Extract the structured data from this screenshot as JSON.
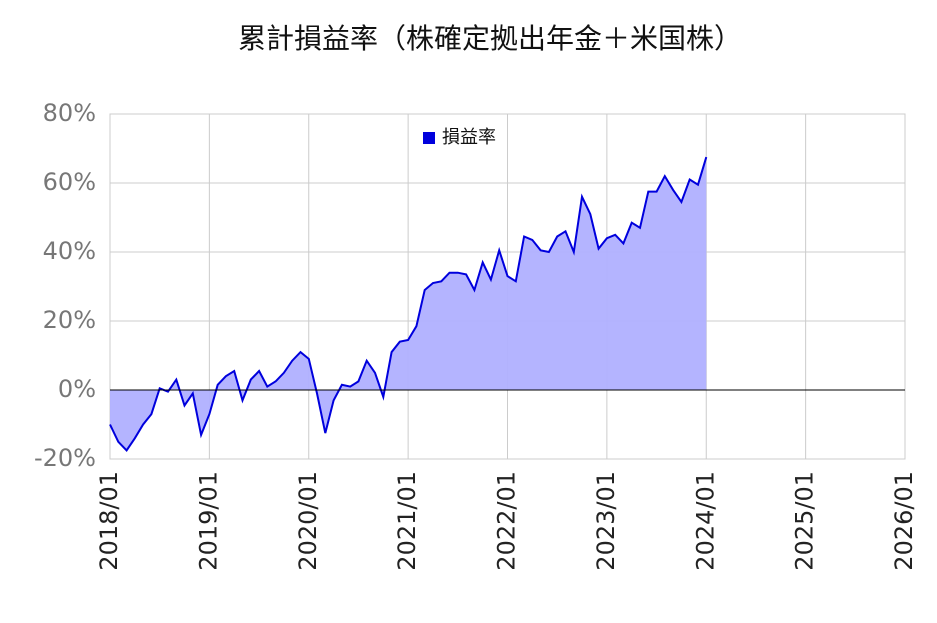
{
  "chart_data": {
    "type": "area",
    "title": "累計損益率（株確定拠出年金＋米国株）",
    "x": [
      "2018/01",
      "2018/02",
      "2018/03",
      "2018/04",
      "2018/05",
      "2018/06",
      "2018/07",
      "2018/08",
      "2018/09",
      "2018/10",
      "2018/11",
      "2018/12",
      "2019/01",
      "2019/02",
      "2019/03",
      "2019/04",
      "2019/05",
      "2019/06",
      "2019/07",
      "2019/08",
      "2019/09",
      "2019/10",
      "2019/11",
      "2019/12",
      "2020/01",
      "2020/02",
      "2020/03",
      "2020/04",
      "2020/05",
      "2020/06",
      "2020/07",
      "2020/08",
      "2020/09",
      "2020/10",
      "2020/11",
      "2020/12",
      "2021/01",
      "2021/02",
      "2021/03",
      "2021/04",
      "2021/05",
      "2021/06",
      "2021/07",
      "2021/08",
      "2021/09",
      "2021/10",
      "2021/11",
      "2021/12",
      "2022/01",
      "2022/02",
      "2022/03",
      "2022/04",
      "2022/05",
      "2022/06",
      "2022/07",
      "2022/08",
      "2022/09",
      "2022/10",
      "2022/11",
      "2022/12",
      "2023/01",
      "2023/02",
      "2023/03",
      "2023/04",
      "2023/05",
      "2023/06",
      "2023/07",
      "2023/08",
      "2023/09",
      "2023/10",
      "2023/11",
      "2023/12",
      "2024/01"
    ],
    "series": [
      {
        "name": "損益率",
        "color": "#0000dd",
        "fill": "#b0b0ff",
        "values": [
          -10,
          -15,
          -17.5,
          -14,
          -10,
          -7,
          0.5,
          -0.5,
          3,
          -4.5,
          -1,
          -13,
          -7,
          1.5,
          4,
          5.5,
          -3,
          3,
          5.5,
          1,
          2.5,
          5,
          8.5,
          11,
          9,
          -1,
          -12.5,
          -3,
          1.5,
          1,
          2.5,
          8.5,
          5,
          -2,
          11,
          14,
          14.5,
          18.5,
          29,
          31,
          31.5,
          34,
          34,
          33.5,
          29,
          37,
          32,
          40.5,
          33,
          31.5,
          44.5,
          43.5,
          40.5,
          40,
          44.5,
          46,
          40,
          56,
          51,
          41,
          44,
          45,
          42.5,
          48.5,
          47,
          57.5,
          57.5,
          62,
          58,
          54.5,
          61,
          59.5,
          67.5
        ]
      }
    ],
    "xlim": [
      "2018/01",
      "2026/01"
    ],
    "xticks": [
      "2018/01",
      "2019/01",
      "2020/01",
      "2021/01",
      "2022/01",
      "2023/01",
      "2024/01",
      "2025/01",
      "2026/01"
    ],
    "ylim": [
      -20,
      80
    ],
    "yticks": [
      {
        "value": -20,
        "label": "-20%"
      },
      {
        "value": 0,
        "label": "0%"
      },
      {
        "value": 20,
        "label": "20%"
      },
      {
        "value": 40,
        "label": "40%"
      },
      {
        "value": 60,
        "label": "60%"
      },
      {
        "value": 80,
        "label": "80%"
      }
    ],
    "grid": true,
    "legend": "top"
  }
}
